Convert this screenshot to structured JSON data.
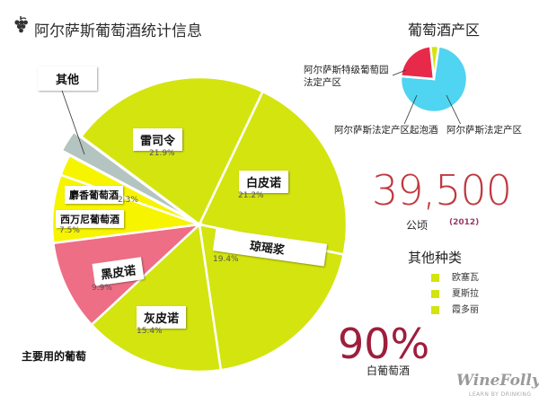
{
  "title": "阿尔萨斯葡萄酒统计信息",
  "colors": {
    "lime": "#d4e40f",
    "pink": "#ee6e85",
    "gray": "#b4c4c0",
    "yellow": "#f7f400",
    "cyan": "#4fd4f1",
    "red": "#e82a4a",
    "area_red": "#c0393f",
    "white_red": "#9e1e3c"
  },
  "chart_data": [
    {
      "type": "pie",
      "title": "",
      "slices": [
        {
          "label": "雷司令",
          "value": 21.9,
          "display": "21.9%",
          "color": "#d4e40f"
        },
        {
          "label": "白皮诺",
          "value": 21.2,
          "display": "21.2%",
          "color": "#d4e40f"
        },
        {
          "label": "琼瑶浆",
          "value": 19.4,
          "display": "19.4%",
          "color": "#d4e40f"
        },
        {
          "label": "灰皮诺",
          "value": 15.4,
          "display": "15.4%",
          "color": "#d4e40f"
        },
        {
          "label": "黑皮诺",
          "value": 9.9,
          "display": "9.9%",
          "color": "#ee6e85"
        },
        {
          "label": "西万尼葡萄酒",
          "value": 7.5,
          "display": "7.5%",
          "color": "#f7f400"
        },
        {
          "label": "麝香葡萄酒",
          "value": 2.3,
          "display": "2.3%",
          "color": "#f7f400"
        },
        {
          "label": "其他",
          "value": 2.4,
          "display": "",
          "color": "#b4c4c0"
        }
      ],
      "caption": "主要用的葡萄"
    },
    {
      "type": "pie",
      "title": "葡萄酒产区",
      "slices": [
        {
          "label": "阿尔萨斯法定产区",
          "value": 74,
          "color": "#4fd4f1"
        },
        {
          "label": "阿尔萨斯法定产区起泡酒",
          "value": 22,
          "color": "#e82a4a"
        },
        {
          "label": "阿尔萨斯特级葡萄园法定产区",
          "value": 4,
          "color": "#d4e40f"
        }
      ]
    }
  ],
  "area": {
    "value": "39,500",
    "unit": "公顷",
    "year": "(2012)"
  },
  "other_varieties": {
    "title": "其他种类",
    "items": [
      {
        "label": "欧塞瓦",
        "color": "#d4e40f"
      },
      {
        "label": "夏斯拉",
        "color": "#d4e40f"
      },
      {
        "label": "霞多丽",
        "color": "#d4e40f"
      }
    ]
  },
  "white_wine": {
    "value": "90%",
    "label": "白葡萄酒"
  },
  "logo": {
    "name": "WineFolly",
    "tagline": "LEARN BY DRINKING"
  }
}
